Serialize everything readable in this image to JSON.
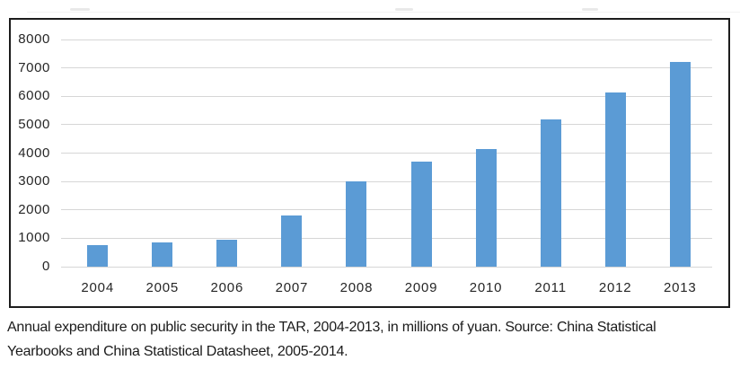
{
  "chart_data": {
    "type": "bar",
    "categories": [
      "2004",
      "2005",
      "2006",
      "2007",
      "2008",
      "2009",
      "2010",
      "2011",
      "2012",
      "2013"
    ],
    "values": [
      750,
      850,
      950,
      1790,
      3000,
      3700,
      4150,
      5200,
      6150,
      7200
    ],
    "title": "",
    "xlabel": "",
    "ylabel": "",
    "ylim": [
      0,
      8000
    ],
    "yticks": [
      0,
      1000,
      2000,
      3000,
      4000,
      5000,
      6000,
      7000,
      8000
    ],
    "grid": true,
    "legend_position": "none",
    "bar_color": "#5b9bd5",
    "gridline_color": "#d6d6d6",
    "frame_color": "#1c1c1c",
    "tick_label_color": "#262626"
  },
  "caption": {
    "line1": "Annual expenditure on public security in the TAR, 2004-2013, in millions of yuan. Source: China Statistical",
    "line2": "Yearbooks and China Statistical Datasheet, 2005-2014."
  }
}
